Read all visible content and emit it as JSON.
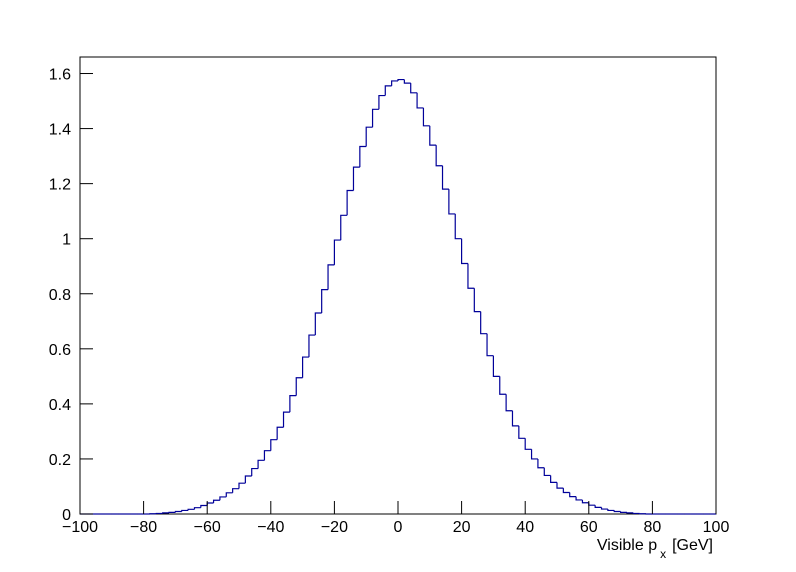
{
  "chart_data": {
    "type": "histogram",
    "x_label": {
      "text": "Visible p",
      "subscript": "x",
      "unit": "[GeV]"
    },
    "color": "#000099",
    "bins": [
      -100,
      -98,
      -96,
      -94,
      -92,
      -90,
      -88,
      -86,
      -84,
      -82,
      -80,
      -78,
      -76,
      -74,
      -72,
      -70,
      -68,
      -66,
      -64,
      -62,
      -60,
      -58,
      -56,
      -54,
      -52,
      -50,
      -48,
      -46,
      -44,
      -42,
      -40,
      -38,
      -36,
      -34,
      -32,
      -30,
      -28,
      -26,
      -24,
      -22,
      -20,
      -18,
      -16,
      -14,
      -12,
      -10,
      -8,
      -6,
      -4,
      -2,
      0,
      2,
      4,
      6,
      8,
      10,
      12,
      14,
      16,
      18,
      20,
      22,
      24,
      26,
      28,
      30,
      32,
      34,
      36,
      38,
      40,
      42,
      44,
      46,
      48,
      50,
      52,
      54,
      56,
      58,
      60,
      62,
      64,
      66,
      68,
      70,
      72,
      74,
      76,
      78,
      80,
      82,
      84,
      86,
      88,
      90,
      92,
      94,
      96,
      98,
      100
    ],
    "values": [
      0,
      0,
      0,
      0,
      0,
      0,
      0,
      0,
      0,
      0,
      0,
      0.001,
      0.002,
      0.004,
      0.006,
      0.009,
      0.013,
      0.017,
      0.023,
      0.031,
      0.04,
      0.05,
      0.062,
      0.077,
      0.092,
      0.112,
      0.138,
      0.165,
      0.195,
      0.23,
      0.27,
      0.315,
      0.37,
      0.43,
      0.495,
      0.57,
      0.65,
      0.73,
      0.815,
      0.905,
      0.995,
      1.085,
      1.175,
      1.26,
      1.335,
      1.405,
      1.47,
      1.52,
      1.555,
      1.573,
      1.578,
      1.565,
      1.53,
      1.475,
      1.41,
      1.34,
      1.265,
      1.18,
      1.09,
      1.0,
      0.91,
      0.82,
      0.735,
      0.655,
      0.575,
      0.5,
      0.435,
      0.375,
      0.32,
      0.275,
      0.235,
      0.2,
      0.168,
      0.14,
      0.115,
      0.094,
      0.078,
      0.063,
      0.051,
      0.041,
      0.032,
      0.024,
      0.018,
      0.013,
      0.009,
      0.006,
      0.004,
      0.002,
      0.001,
      0,
      0,
      0,
      0,
      0,
      0,
      0,
      0,
      0,
      0,
      0
    ],
    "xlim": [
      -100,
      100
    ],
    "ylim": [
      0,
      1.66
    ],
    "xticks": [
      {
        "value": -100,
        "label": "−100"
      },
      {
        "value": -80,
        "label": "−80"
      },
      {
        "value": -60,
        "label": "−60"
      },
      {
        "value": -40,
        "label": "−40"
      },
      {
        "value": -20,
        "label": "−20"
      },
      0,
      20,
      40,
      60,
      80,
      100
    ],
    "yticks": [
      0,
      0.2,
      0.4,
      0.6,
      0.8,
      1,
      1.2,
      1.4,
      1.6
    ],
    "grid": false
  }
}
